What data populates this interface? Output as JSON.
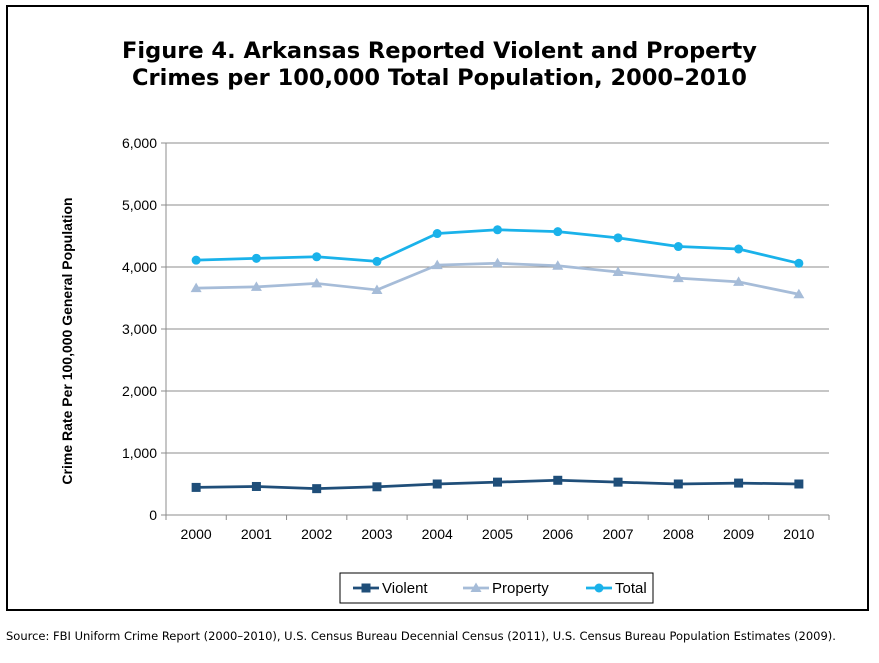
{
  "title": {
    "line1": "Figure 4. Arkansas Reported Violent and Property",
    "line2": "Crimes per 100,000 Total Population, 2000–2010"
  },
  "source": "Source: FBI Uniform Crime Report (2000–2010), U.S. Census Bureau Decennial Census (2011), U.S. Census Bureau Population Estimates (2009).",
  "chart_data": {
    "type": "line",
    "title": "Figure 4. Arkansas Reported Violent and Property Crimes per 100,000 Total Population, 2000–2010",
    "xlabel": "",
    "ylabel": "Crime Rate Per 100,000 General Population",
    "categories": [
      "2000",
      "2001",
      "2002",
      "2003",
      "2004",
      "2005",
      "2006",
      "2007",
      "2008",
      "2009",
      "2010"
    ],
    "ylim": [
      0,
      6000
    ],
    "yticks": [
      0,
      1000,
      2000,
      3000,
      4000,
      5000,
      6000
    ],
    "ytick_labels": [
      "0",
      "1,000",
      "2,000",
      "3,000",
      "4,000",
      "5,000",
      "6,000"
    ],
    "grid": true,
    "legend_position": "bottom",
    "series": [
      {
        "name": "Violent",
        "color": "#1f4e79",
        "marker": "square",
        "values": [
          445,
          460,
          425,
          455,
          500,
          530,
          560,
          530,
          500,
          515,
          500
        ]
      },
      {
        "name": "Property",
        "color": "#a6bcd8",
        "marker": "triangle",
        "values": [
          3660,
          3680,
          3735,
          3630,
          4030,
          4060,
          4020,
          3920,
          3820,
          3760,
          3560
        ]
      },
      {
        "name": "Total",
        "color": "#1ab2ea",
        "marker": "circle",
        "values": [
          4110,
          4140,
          4165,
          4090,
          4540,
          4600,
          4570,
          4470,
          4330,
          4290,
          4060
        ]
      }
    ]
  }
}
